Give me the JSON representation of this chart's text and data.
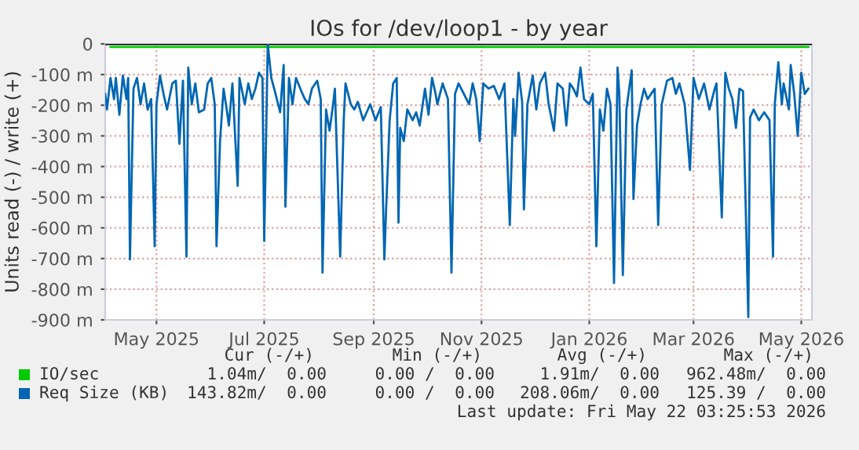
{
  "chart_data": {
    "type": "line",
    "title": "IOs for /dev/loop1 - by year",
    "ylabel": "Units read (-) / write (+)",
    "xlim": [
      "2025-04-17",
      "2026-05-22"
    ],
    "xticks": [
      {
        "value": "2025-05-16",
        "label": "May 2025"
      },
      {
        "value": "2025-07-16",
        "label": "Jul 2025"
      },
      {
        "value": "2025-09-16",
        "label": "Sep 2025"
      },
      {
        "value": "2025-11-16",
        "label": "Nov 2025"
      },
      {
        "value": "2026-01-16",
        "label": "Jan 2026"
      },
      {
        "value": "2026-03-16",
        "label": "Mar 2026"
      },
      {
        "value": "2026-05-16",
        "label": "May 2026"
      }
    ],
    "ylim": [
      -900,
      0
    ],
    "yticks": [
      {
        "value": -900,
        "label": "-900 m"
      },
      {
        "value": -800,
        "label": "-800 m"
      },
      {
        "value": -700,
        "label": "-700 m"
      },
      {
        "value": -600,
        "label": "-600 m"
      },
      {
        "value": -500,
        "label": "-500 m"
      },
      {
        "value": -400,
        "label": "-400 m"
      },
      {
        "value": -300,
        "label": "-300 m"
      },
      {
        "value": -200,
        "label": "-200 m"
      },
      {
        "value": -100,
        "label": "-100 m"
      },
      0
    ],
    "grid": true,
    "legend": "bottom",
    "ref_lines": [
      {
        "axis": "y",
        "value": 0,
        "color": "#000000"
      }
    ],
    "series": [
      {
        "name": "IO/sec",
        "color": "#00cc00",
        "x": [
          "2025-04-20",
          "2025-05-10",
          "2025-06-15",
          "2025-07-20",
          "2025-08-25",
          "2025-10-01",
          "2025-11-10",
          "2025-12-20",
          "2026-01-25",
          "2026-03-05",
          "2026-04-10",
          "2026-05-20"
        ],
        "values": [
          -10,
          -10,
          -10,
          -10,
          -10,
          -10,
          -10,
          -10,
          -10,
          -10,
          -10,
          -10
        ]
      },
      {
        "name": "Req Size (KB)",
        "color": "#0066b3",
        "x": [
          "2025-04-17",
          "2025-04-18",
          "2025-04-20",
          "2025-04-22",
          "2025-04-23",
          "2025-04-25",
          "2025-04-27",
          "2025-04-29",
          "2025-04-30",
          "2025-05-01",
          "2025-05-03",
          "2025-05-05",
          "2025-05-07",
          "2025-05-09",
          "2025-05-11",
          "2025-05-13",
          "2025-05-15",
          "2025-05-16",
          "2025-05-18",
          "2025-05-20",
          "2025-05-22",
          "2025-05-25",
          "2025-05-27",
          "2025-05-29",
          "2025-05-31",
          "2025-06-02",
          "2025-06-03",
          "2025-06-05",
          "2025-06-07",
          "2025-06-09",
          "2025-06-12",
          "2025-06-14",
          "2025-06-16",
          "2025-06-18",
          "2025-06-19",
          "2025-06-21",
          "2025-06-23",
          "2025-06-25",
          "2025-06-26",
          "2025-06-28",
          "2025-07-01",
          "2025-07-02",
          "2025-07-05",
          "2025-07-07",
          "2025-07-09",
          "2025-07-11",
          "2025-07-13",
          "2025-07-15",
          "2025-07-16",
          "2025-07-18",
          "2025-07-20",
          "2025-07-22",
          "2025-07-25",
          "2025-07-27",
          "2025-07-28",
          "2025-07-30",
          "2025-08-01",
          "2025-08-03",
          "2025-08-06",
          "2025-08-08",
          "2025-08-10",
          "2025-08-12",
          "2025-08-15",
          "2025-08-17",
          "2025-08-18",
          "2025-08-20",
          "2025-08-22",
          "2025-08-24",
          "2025-08-25",
          "2025-08-28",
          "2025-08-30",
          "2025-08-31",
          "2025-09-03",
          "2025-09-05",
          "2025-09-07",
          "2025-09-10",
          "2025-09-12",
          "2025-09-14",
          "2025-09-17",
          "2025-09-20",
          "2025-09-22",
          "2025-09-23",
          "2025-09-25",
          "2025-09-27",
          "2025-09-29",
          "2025-09-30",
          "2025-10-01",
          "2025-10-03",
          "2025-10-05",
          "2025-10-08",
          "2025-10-10",
          "2025-10-12",
          "2025-10-15",
          "2025-10-17",
          "2025-10-19",
          "2025-10-21",
          "2025-10-22",
          "2025-10-25",
          "2025-10-28",
          "2025-10-30",
          "2025-11-01",
          "2025-11-03",
          "2025-11-06",
          "2025-11-09",
          "2025-11-11",
          "2025-11-13",
          "2025-11-15",
          "2025-11-17",
          "2025-11-20",
          "2025-11-23",
          "2025-11-26",
          "2025-11-29",
          "2025-12-02",
          "2025-12-04",
          "2025-12-05",
          "2025-12-07",
          "2025-12-09",
          "2025-12-10",
          "2025-12-12",
          "2025-12-15",
          "2025-12-17",
          "2025-12-19",
          "2025-12-22",
          "2025-12-24",
          "2025-12-27",
          "2025-12-29",
          "2026-01-01",
          "2026-01-03",
          "2026-01-05",
          "2026-01-07",
          "2026-01-09",
          "2026-01-11",
          "2026-01-13",
          "2026-01-16",
          "2026-01-18",
          "2026-01-20",
          "2026-01-22",
          "2026-01-24",
          "2026-01-26",
          "2026-01-28",
          "2026-01-30",
          "2026-02-01",
          "2026-02-02",
          "2026-02-04",
          "2026-02-06",
          "2026-02-09",
          "2026-02-10",
          "2026-02-12",
          "2026-02-14",
          "2026-02-16",
          "2026-02-18",
          "2026-02-22",
          "2026-02-24",
          "2026-02-26",
          "2026-03-01",
          "2026-03-04",
          "2026-03-06",
          "2026-03-08",
          "2026-03-11",
          "2026-03-14",
          "2026-03-16",
          "2026-03-19",
          "2026-03-22",
          "2026-03-25",
          "2026-03-28",
          "2026-03-29",
          "2026-04-01",
          "2026-04-03",
          "2026-04-05",
          "2026-04-07",
          "2026-04-09",
          "2026-04-11",
          "2026-04-13",
          "2026-04-16",
          "2026-04-17",
          "2026-04-19",
          "2026-04-22",
          "2026-04-25",
          "2026-04-28",
          "2026-04-30",
          "2026-05-01",
          "2026-05-03",
          "2026-05-05",
          "2026-05-06",
          "2026-05-09",
          "2026-05-10",
          "2026-05-12",
          "2026-05-14",
          "2026-05-16",
          "2026-05-18",
          "2026-05-20"
        ],
        "values": [
          -163,
          -214,
          -111,
          -180,
          -111,
          -231,
          -103,
          -180,
          -111,
          -703,
          -146,
          -111,
          -197,
          -129,
          -214,
          -180,
          -660,
          -197,
          -103,
          -163,
          -214,
          -129,
          -120,
          -326,
          -120,
          -694,
          -77,
          -197,
          -129,
          -223,
          -214,
          -129,
          -111,
          -197,
          -660,
          -317,
          -146,
          -223,
          -266,
          -129,
          -463,
          -111,
          -197,
          -129,
          -180,
          -146,
          -94,
          -111,
          -643,
          0,
          -111,
          -154,
          -223,
          -69,
          -531,
          -111,
          -197,
          -111,
          -154,
          -180,
          -197,
          -146,
          -120,
          -180,
          -746,
          -214,
          -283,
          -197,
          -146,
          -694,
          -249,
          -129,
          -197,
          -214,
          -189,
          -249,
          -223,
          -197,
          -249,
          -206,
          -703,
          -540,
          -249,
          -129,
          -111,
          -583,
          -274,
          -317,
          -214,
          -249,
          -223,
          -266,
          -146,
          -231,
          -111,
          -163,
          -197,
          -129,
          -180,
          -746,
          -163,
          -129,
          -163,
          -197,
          -129,
          -180,
          -317,
          -129,
          -146,
          -137,
          -180,
          -129,
          -591,
          -180,
          -300,
          -94,
          -189,
          -540,
          -197,
          -103,
          -214,
          -129,
          -94,
          -197,
          -283,
          -129,
          -146,
          -266,
          -129,
          -146,
          -171,
          -77,
          -180,
          -197,
          -163,
          -660,
          -214,
          -283,
          -146,
          -197,
          -780,
          -77,
          -163,
          -754,
          -214,
          -86,
          -506,
          -266,
          -197,
          -146,
          -180,
          -146,
          -591,
          -197,
          -120,
          -111,
          -163,
          -129,
          -197,
          -411,
          -111,
          -180,
          -129,
          -214,
          -146,
          -129,
          -566,
          -94,
          -146,
          -180,
          -274,
          -146,
          -154,
          -891,
          -240,
          -214,
          -249,
          -223,
          -249,
          -694,
          -197,
          -60,
          -197,
          -129,
          -214,
          -69,
          -163,
          -300,
          -94,
          -163,
          -146
        ]
      }
    ],
    "annotations": [
      "Cur (-/+)",
      "Min (-/+)",
      "Avg (-/+)",
      "Max (-/+)",
      "1.04m/  0.00",
      "0.00 /  0.00",
      "1.91m/  0.00",
      "962.48m/  0.00",
      "143.82m/  0.00",
      "0.00 /  0.00",
      "208.06m/  0.00",
      "125.39 /  0.00",
      "Last update: Fri May 22 03:25:53 2026"
    ]
  }
}
